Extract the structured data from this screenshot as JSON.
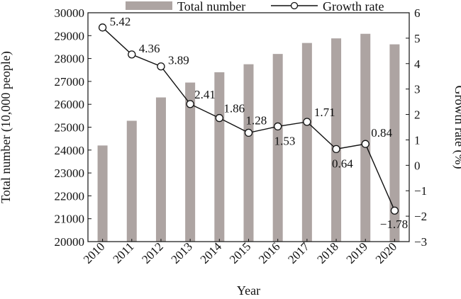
{
  "chart_data": {
    "type": "bar+line",
    "x": [
      "2010",
      "2011",
      "2012",
      "2013",
      "2014",
      "2015",
      "2016",
      "2017",
      "2018",
      "2019",
      "2020"
    ],
    "xlabel": "Year",
    "series": [
      {
        "name": "Total number",
        "kind": "bar",
        "axis": "left",
        "values": [
          24200,
          25280,
          26300,
          26950,
          27400,
          27750,
          28200,
          28680,
          28880,
          29080,
          28620
        ],
        "color": "#ada4a2"
      },
      {
        "name": "Growth rate",
        "kind": "line",
        "axis": "right",
        "values": [
          5.42,
          4.36,
          3.89,
          2.41,
          1.86,
          1.28,
          1.53,
          1.71,
          0.64,
          0.84,
          -1.78
        ],
        "labels": [
          "5.42",
          "4.36",
          "3.89",
          "2.41",
          "1.86",
          "1.28",
          "1.53",
          "1.71",
          "0.64",
          "0.84",
          "−1.78"
        ],
        "color": "#111111",
        "marker": "open-circle"
      }
    ],
    "y_left": {
      "label": "Total number (10,000 people)",
      "lim": [
        20000,
        30000
      ],
      "ticks": [
        20000,
        21000,
        22000,
        23000,
        24000,
        25000,
        26000,
        27000,
        28000,
        29000,
        30000
      ],
      "tick_labels": [
        "20000",
        "21000",
        "22000",
        "23000",
        "24000",
        "25000",
        "26000",
        "27000",
        "28000",
        "29000",
        "30000"
      ]
    },
    "y_right": {
      "label": "Growth rate (%)",
      "lim": [
        -3,
        6
      ],
      "ticks": [
        -3,
        -2,
        -1,
        0,
        1,
        2,
        3,
        4,
        5,
        6
      ],
      "tick_labels": [
        "−3",
        "−2",
        "−1",
        "0",
        "1",
        "2",
        "3",
        "4",
        "5",
        "6"
      ]
    },
    "legend": {
      "position": "top",
      "items": [
        "Total number",
        "Growth rate"
      ]
    },
    "grid": false
  }
}
